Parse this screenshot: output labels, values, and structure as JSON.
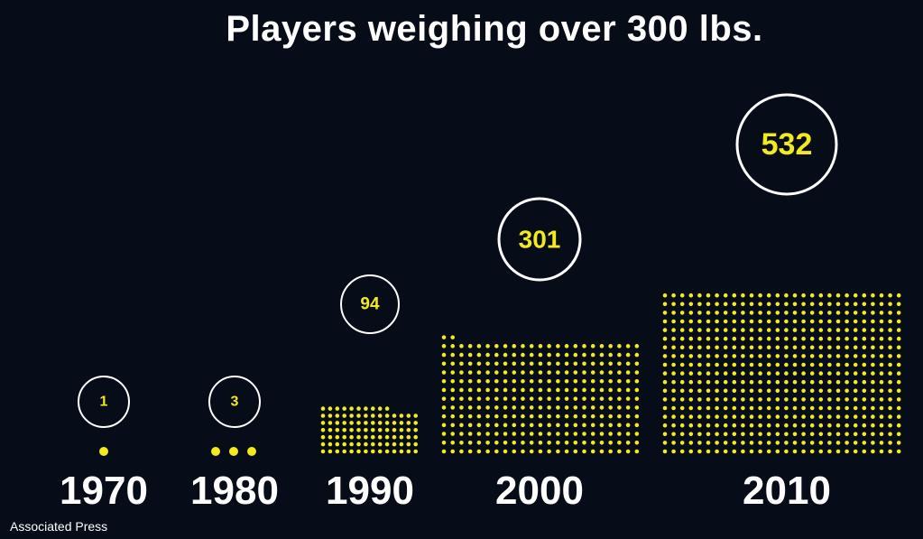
{
  "chart_data": {
    "type": "bar",
    "title": "Players weighing over 300 lbs.",
    "categories": [
      "1970",
      "1980",
      "1990",
      "2000",
      "2010"
    ],
    "values": [
      1,
      3,
      94,
      301,
      532
    ],
    "source": "Associated Press",
    "colors": {
      "background": "#060c18",
      "dot": "#f2ea1c",
      "text": "#ffffff",
      "value_text": "#f2ea1c",
      "circle_stroke": "#ffffff"
    }
  }
}
